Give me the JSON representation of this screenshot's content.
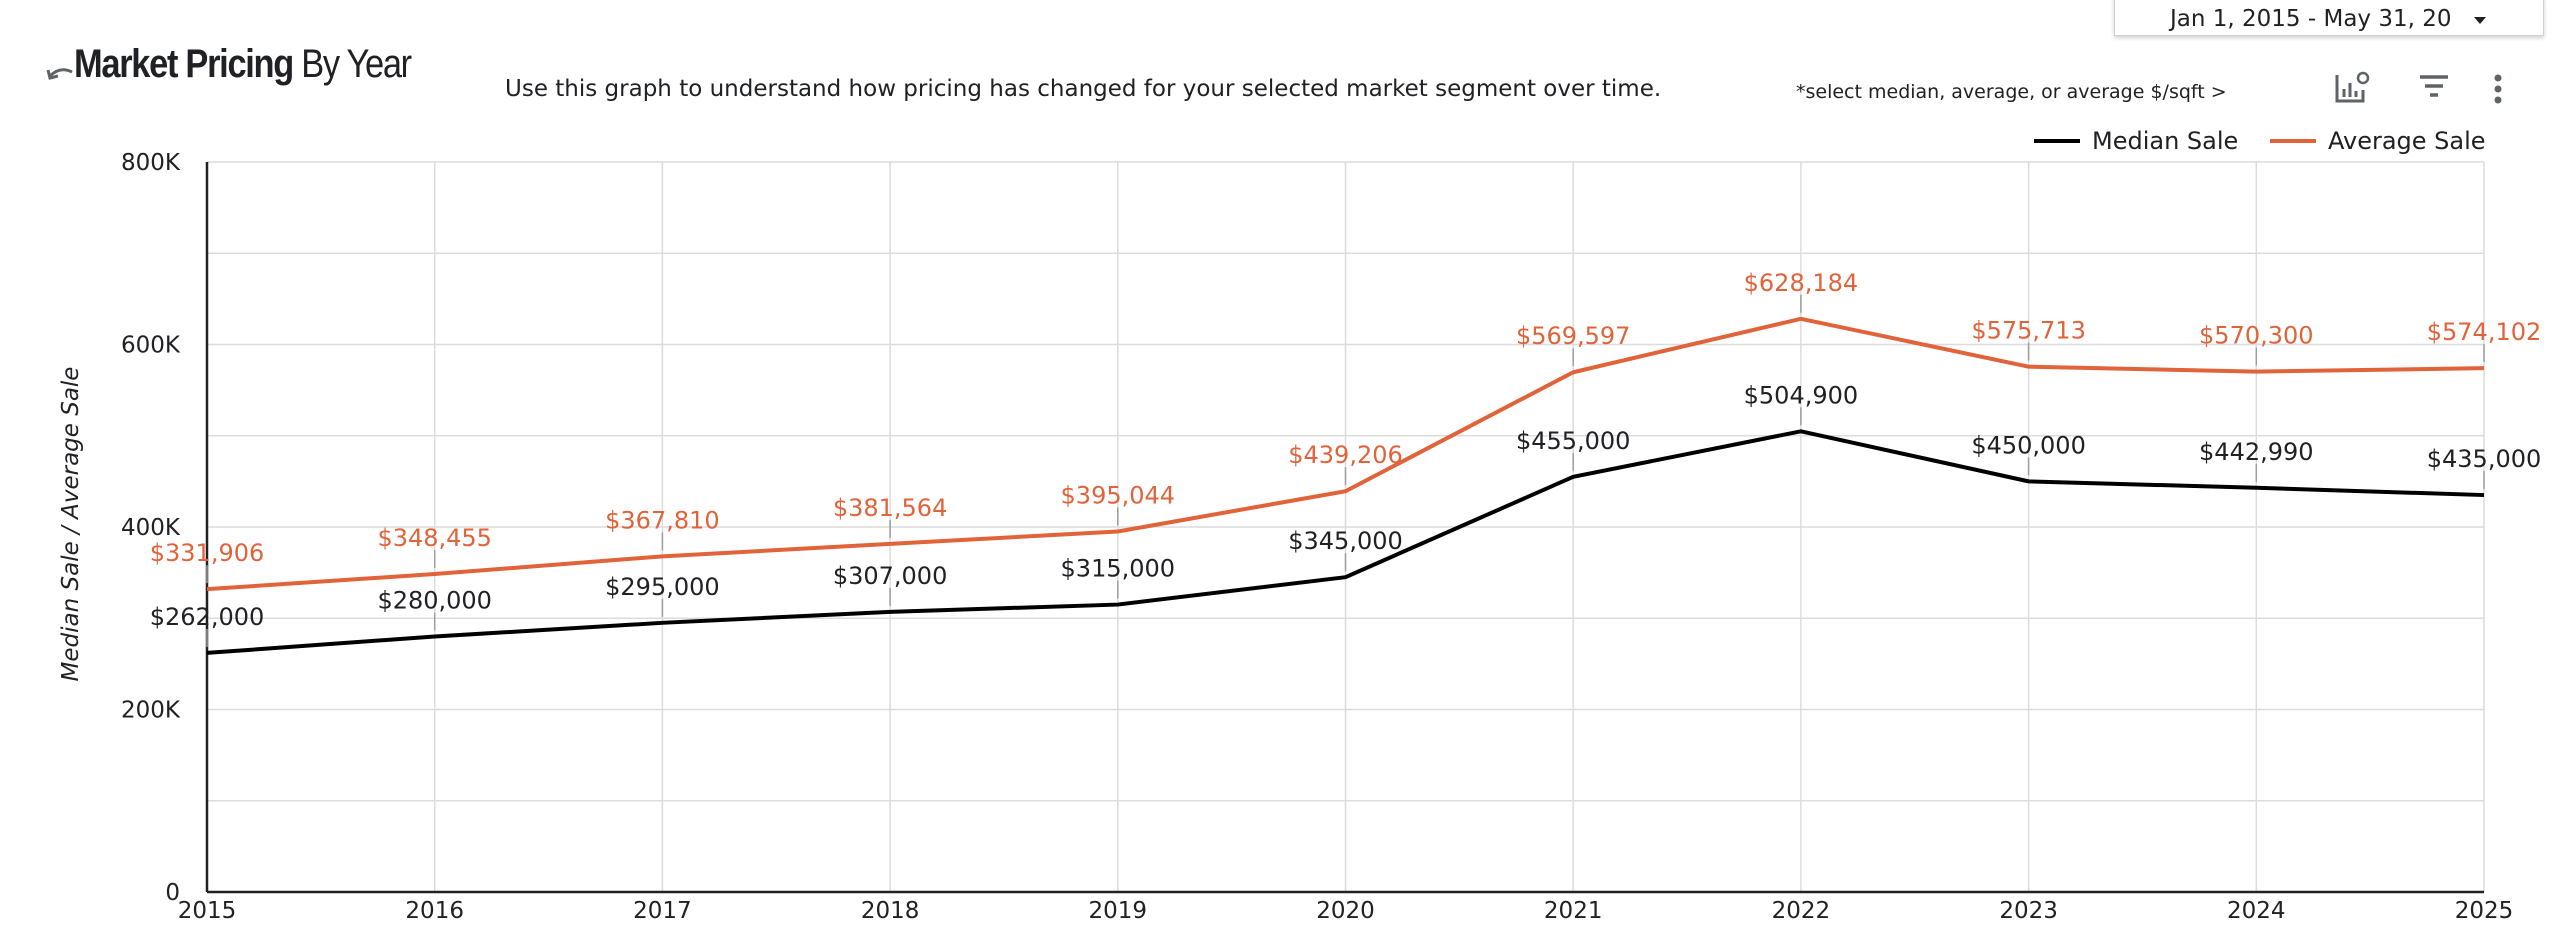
{
  "header": {
    "title_bold": "Market Pricing",
    "title_rest": " By Year",
    "subtitle": "Use this graph to understand how pricing has changed for your selected market segment over time.",
    "hint": "*select median, average, or average $/sqft >"
  },
  "controls": {
    "date_range": "Jan 1, 2015 - May 31, 20",
    "icons": [
      "back-arrow-icon",
      "insights-chart-icon",
      "filter-icon",
      "more-vert-icon"
    ]
  },
  "chart_data": {
    "type": "line",
    "x": [
      "2015",
      "2016",
      "2017",
      "2018",
      "2019",
      "2020",
      "2021",
      "2022",
      "2023",
      "2024",
      "2025"
    ],
    "ylabel": "Median Sale / Average Sale",
    "ylim": [
      0,
      800000
    ],
    "yticks": [
      0,
      200000,
      400000,
      600000,
      800000
    ],
    "ytick_labels": [
      "0",
      "200K",
      "400K",
      "600K",
      "800K"
    ],
    "grid": true,
    "legend_position": "top-right",
    "series": [
      {
        "name": "Median Sale",
        "color": "#000000",
        "values": [
          262000,
          280000,
          295000,
          307000,
          315000,
          345000,
          455000,
          504900,
          450000,
          442990,
          435000
        ],
        "labels": [
          "$262,000",
          "$280,000",
          "$295,000",
          "$307,000",
          "$315,000",
          "$345,000",
          "$455,000",
          "$504,900",
          "$450,000",
          "$442,990",
          "$435,000"
        ]
      },
      {
        "name": "Average Sale",
        "color": "#e0633a",
        "values": [
          331906,
          348455,
          367810,
          381564,
          395044,
          439206,
          569597,
          628184,
          575713,
          570300,
          574102
        ],
        "labels": [
          "$331,906",
          "$348,455",
          "$367,810",
          "$381,564",
          "$395,044",
          "$439,206",
          "$569,597",
          "$628,184",
          "$575,713",
          "$570,300",
          "$574,102"
        ]
      }
    ]
  }
}
